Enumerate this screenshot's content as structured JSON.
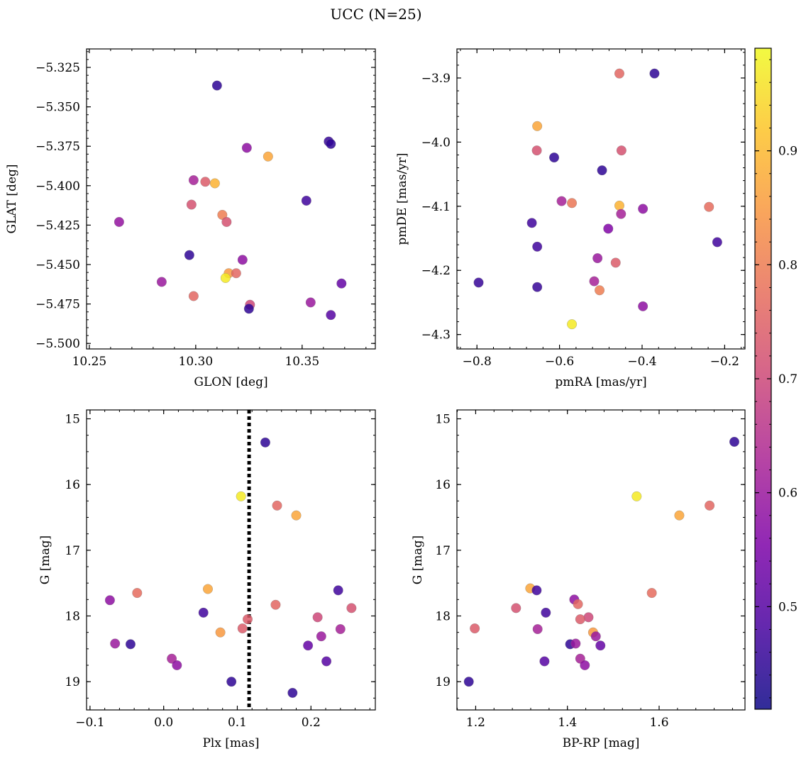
{
  "suptitle": "UCC (N=25)",
  "colorbar": {
    "colormap": "plasma",
    "range": [
      0.41,
      0.99
    ],
    "ticks": [
      0.5,
      0.6,
      0.7,
      0.8,
      0.9
    ],
    "tick_labels": [
      "0.5",
      "0.6",
      "0.7",
      "0.8",
      "0.9"
    ]
  },
  "chart_data": [
    {
      "type": "scatter",
      "id": "glon-glat",
      "xlabel": "GLON [deg]",
      "ylabel": "GLAT [deg]",
      "xlim": [
        10.2487,
        10.3844
      ],
      "ylim": [
        -5.5035,
        -5.3133
      ],
      "xticks": [
        10.25,
        10.3,
        10.35
      ],
      "xtick_labels": [
        "10.25",
        "10.30",
        "10.35"
      ],
      "yticks": [
        -5.325,
        -5.35,
        -5.375,
        -5.4,
        -5.425,
        -5.45,
        -5.475,
        -5.5
      ],
      "ytick_labels": [
        "−5.325",
        "−5.350",
        "−5.375",
        "−5.400",
        "−5.425",
        "−5.450",
        "−5.475",
        "−5.500"
      ],
      "points": [
        {
          "x": 10.31,
          "y": -5.3365,
          "c": 0.45
        },
        {
          "x": 10.3625,
          "y": -5.372,
          "c": 0.46
        },
        {
          "x": 10.3635,
          "y": -5.3735,
          "c": 0.45
        },
        {
          "x": 10.324,
          "y": -5.376,
          "c": 0.58
        },
        {
          "x": 10.334,
          "y": -5.3815,
          "c": 0.87
        },
        {
          "x": 10.299,
          "y": -5.3965,
          "c": 0.62
        },
        {
          "x": 10.3045,
          "y": -5.3975,
          "c": 0.74
        },
        {
          "x": 10.309,
          "y": -5.3985,
          "c": 0.89
        },
        {
          "x": 10.352,
          "y": -5.4095,
          "c": 0.47
        },
        {
          "x": 10.298,
          "y": -5.412,
          "c": 0.72
        },
        {
          "x": 10.3125,
          "y": -5.4185,
          "c": 0.8
        },
        {
          "x": 10.3145,
          "y": -5.423,
          "c": 0.72
        },
        {
          "x": 10.264,
          "y": -5.423,
          "c": 0.59
        },
        {
          "x": 10.297,
          "y": -5.444,
          "c": 0.45
        },
        {
          "x": 10.322,
          "y": -5.447,
          "c": 0.58
        },
        {
          "x": 10.3155,
          "y": -5.4555,
          "c": 0.85
        },
        {
          "x": 10.319,
          "y": -5.4555,
          "c": 0.76
        },
        {
          "x": 10.314,
          "y": -5.4585,
          "c": 0.97
        },
        {
          "x": 10.284,
          "y": -5.461,
          "c": 0.6
        },
        {
          "x": 10.3685,
          "y": -5.462,
          "c": 0.52
        },
        {
          "x": 10.299,
          "y": -5.47,
          "c": 0.76
        },
        {
          "x": 10.354,
          "y": -5.474,
          "c": 0.6
        },
        {
          "x": 10.3255,
          "y": -5.4755,
          "c": 0.7
        },
        {
          "x": 10.325,
          "y": -5.478,
          "c": 0.45
        },
        {
          "x": 10.3635,
          "y": -5.482,
          "c": 0.5
        }
      ]
    },
    {
      "type": "scatter",
      "id": "pmra-pmde",
      "xlabel": "pmRA [mas/yr]",
      "ylabel": "pmDE [mas/yr]",
      "xlim": [
        -0.8485,
        -0.1508
      ],
      "ylim": [
        -4.3225,
        -3.8547
      ],
      "xticks": [
        -0.8,
        -0.6,
        -0.4,
        -0.2
      ],
      "xtick_labels": [
        "−0.8",
        "−0.6",
        "−0.4",
        "−0.2"
      ],
      "yticks": [
        -3.9,
        -4.0,
        -4.1,
        -4.2,
        -4.3
      ],
      "ytick_labels": [
        "−3.9",
        "−4.0",
        "−4.1",
        "−4.2",
        "−4.3"
      ],
      "points": [
        {
          "x": -0.455,
          "y": -3.893,
          "c": 0.76
        },
        {
          "x": -0.37,
          "y": -3.893,
          "c": 0.45
        },
        {
          "x": -0.654,
          "y": -3.975,
          "c": 0.87
        },
        {
          "x": -0.655,
          "y": -4.013,
          "c": 0.72
        },
        {
          "x": -0.45,
          "y": -4.013,
          "c": 0.72
        },
        {
          "x": -0.613,
          "y": -4.024,
          "c": 0.45
        },
        {
          "x": -0.497,
          "y": -4.044,
          "c": 0.45
        },
        {
          "x": -0.595,
          "y": -4.092,
          "c": 0.62
        },
        {
          "x": -0.57,
          "y": -4.095,
          "c": 0.79
        },
        {
          "x": -0.455,
          "y": -4.099,
          "c": 0.89
        },
        {
          "x": -0.238,
          "y": -4.101,
          "c": 0.77
        },
        {
          "x": -0.398,
          "y": -4.104,
          "c": 0.58
        },
        {
          "x": -0.451,
          "y": -4.112,
          "c": 0.62
        },
        {
          "x": -0.667,
          "y": -4.126,
          "c": 0.47
        },
        {
          "x": -0.482,
          "y": -4.135,
          "c": 0.56
        },
        {
          "x": -0.218,
          "y": -4.156,
          "c": 0.47
        },
        {
          "x": -0.654,
          "y": -4.163,
          "c": 0.47
        },
        {
          "x": -0.508,
          "y": -4.181,
          "c": 0.6
        },
        {
          "x": -0.464,
          "y": -4.188,
          "c": 0.74
        },
        {
          "x": -0.796,
          "y": -4.219,
          "c": 0.46
        },
        {
          "x": -0.516,
          "y": -4.217,
          "c": 0.62
        },
        {
          "x": -0.654,
          "y": -4.226,
          "c": 0.46
        },
        {
          "x": -0.503,
          "y": -4.231,
          "c": 0.8
        },
        {
          "x": -0.398,
          "y": -4.256,
          "c": 0.58
        },
        {
          "x": -0.57,
          "y": -4.284,
          "c": 0.97
        }
      ]
    },
    {
      "type": "scatter",
      "id": "plx-g",
      "xlabel": "Plx [mas]",
      "ylabel": "G [mag]",
      "xlim": [
        -0.1047,
        0.2874
      ],
      "ylim": [
        19.43,
        14.865
      ],
      "inverted_y": true,
      "vline": {
        "x": 0.116,
        "style": "dotted",
        "color": "#000000"
      },
      "xticks": [
        -0.1,
        0.0,
        0.1,
        0.2
      ],
      "xtick_labels": [
        "−0.1",
        "0.0",
        "0.1",
        "0.2"
      ],
      "yticks": [
        15,
        16,
        17,
        18,
        19
      ],
      "ytick_labels": [
        "15",
        "16",
        "17",
        "18",
        "19"
      ],
      "points": [
        {
          "x": 0.138,
          "y": 15.36,
          "c": 0.45
        },
        {
          "x": 0.105,
          "y": 16.18,
          "c": 0.97
        },
        {
          "x": 0.154,
          "y": 16.32,
          "c": 0.76
        },
        {
          "x": 0.18,
          "y": 16.47,
          "c": 0.87
        },
        {
          "x": 0.06,
          "y": 17.59,
          "c": 0.87
        },
        {
          "x": 0.237,
          "y": 17.61,
          "c": 0.47
        },
        {
          "x": -0.036,
          "y": 17.65,
          "c": 0.77
        },
        {
          "x": -0.073,
          "y": 17.76,
          "c": 0.58
        },
        {
          "x": 0.152,
          "y": 17.83,
          "c": 0.76
        },
        {
          "x": 0.255,
          "y": 17.88,
          "c": 0.72
        },
        {
          "x": 0.054,
          "y": 17.95,
          "c": 0.47
        },
        {
          "x": 0.209,
          "y": 18.02,
          "c": 0.7
        },
        {
          "x": 0.114,
          "y": 18.05,
          "c": 0.74
        },
        {
          "x": 0.107,
          "y": 18.19,
          "c": 0.74
        },
        {
          "x": 0.24,
          "y": 18.2,
          "c": 0.62
        },
        {
          "x": 0.077,
          "y": 18.25,
          "c": 0.85
        },
        {
          "x": 0.214,
          "y": 18.31,
          "c": 0.6
        },
        {
          "x": -0.066,
          "y": 18.42,
          "c": 0.6
        },
        {
          "x": -0.045,
          "y": 18.43,
          "c": 0.45
        },
        {
          "x": 0.196,
          "y": 18.45,
          "c": 0.52
        },
        {
          "x": 0.011,
          "y": 18.65,
          "c": 0.62
        },
        {
          "x": 0.221,
          "y": 18.69,
          "c": 0.5
        },
        {
          "x": 0.018,
          "y": 18.75,
          "c": 0.58
        },
        {
          "x": 0.092,
          "y": 19.0,
          "c": 0.45
        },
        {
          "x": 0.175,
          "y": 19.17,
          "c": 0.45
        }
      ]
    },
    {
      "type": "scatter",
      "id": "bprp-g",
      "xlabel": "BP-RP [mag]",
      "ylabel": "G [mag]",
      "xlim": [
        1.1591,
        1.7872
      ],
      "ylim": [
        19.43,
        14.865
      ],
      "inverted_y": true,
      "xticks": [
        1.2,
        1.4,
        1.6
      ],
      "xtick_labels": [
        "1.2",
        "1.4",
        "1.6"
      ],
      "yticks": [
        15,
        16,
        17,
        18,
        19
      ],
      "ytick_labels": [
        "15",
        "16",
        "17",
        "18",
        "19"
      ],
      "points": [
        {
          "x": 1.764,
          "y": 15.35,
          "c": 0.45
        },
        {
          "x": 1.551,
          "y": 16.18,
          "c": 0.97
        },
        {
          "x": 1.71,
          "y": 16.32,
          "c": 0.76
        },
        {
          "x": 1.644,
          "y": 16.47,
          "c": 0.87
        },
        {
          "x": 1.319,
          "y": 17.58,
          "c": 0.87
        },
        {
          "x": 1.333,
          "y": 17.61,
          "c": 0.47
        },
        {
          "x": 1.584,
          "y": 17.65,
          "c": 0.77
        },
        {
          "x": 1.415,
          "y": 17.75,
          "c": 0.58
        },
        {
          "x": 1.423,
          "y": 17.82,
          "c": 0.76
        },
        {
          "x": 1.288,
          "y": 17.88,
          "c": 0.72
        },
        {
          "x": 1.353,
          "y": 17.95,
          "c": 0.47
        },
        {
          "x": 1.446,
          "y": 18.02,
          "c": 0.7
        },
        {
          "x": 1.428,
          "y": 18.05,
          "c": 0.74
        },
        {
          "x": 1.198,
          "y": 18.19,
          "c": 0.74
        },
        {
          "x": 1.335,
          "y": 18.2,
          "c": 0.62
        },
        {
          "x": 1.456,
          "y": 18.25,
          "c": 0.85
        },
        {
          "x": 1.462,
          "y": 18.31,
          "c": 0.6
        },
        {
          "x": 1.406,
          "y": 18.43,
          "c": 0.45
        },
        {
          "x": 1.418,
          "y": 18.42,
          "c": 0.6
        },
        {
          "x": 1.472,
          "y": 18.45,
          "c": 0.52
        },
        {
          "x": 1.428,
          "y": 18.65,
          "c": 0.62
        },
        {
          "x": 1.35,
          "y": 18.69,
          "c": 0.5
        },
        {
          "x": 1.438,
          "y": 18.75,
          "c": 0.58
        },
        {
          "x": 1.185,
          "y": 19.0,
          "c": 0.45
        }
      ]
    }
  ]
}
